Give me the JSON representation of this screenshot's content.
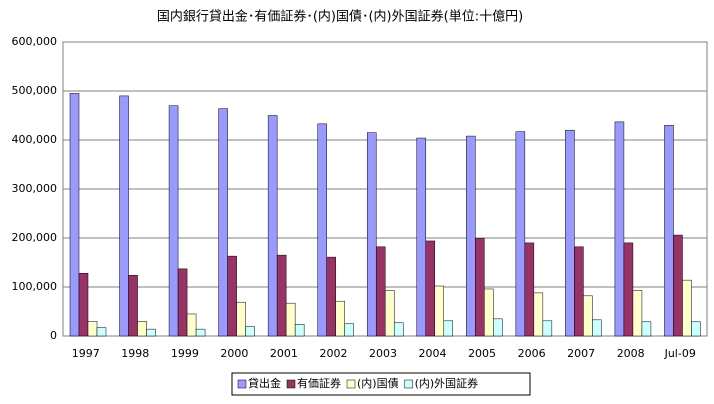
{
  "chart_data": {
    "type": "bar",
    "title": "国内銀行貸出金･有価証券･(内)国債･(内)外国証券(単位:十億円)",
    "categories": [
      "1997",
      "1998",
      "1999",
      "2000",
      "2001",
      "2002",
      "2003",
      "2004",
      "2005",
      "2006",
      "2007",
      "2008",
      "Jul-09"
    ],
    "series": [
      {
        "name": "貸出金",
        "color": "#9999ff",
        "values": [
          495000,
          490000,
          470000,
          464000,
          450000,
          433000,
          415000,
          404000,
          408000,
          417000,
          420000,
          437000,
          430000
        ]
      },
      {
        "name": "有価証券",
        "color": "#993366",
        "values": [
          128000,
          124000,
          137000,
          163000,
          165000,
          161000,
          182000,
          194000,
          199000,
          190000,
          182000,
          190000,
          206000
        ]
      },
      {
        "name": "(内)国債",
        "color": "#ffffcc",
        "values": [
          30000,
          30000,
          45000,
          69000,
          67000,
          71000,
          93000,
          102000,
          96000,
          88000,
          82000,
          93000,
          114000
        ]
      },
      {
        "name": "(内)外国証券",
        "color": "#ccffff",
        "values": [
          17000,
          14000,
          14000,
          19000,
          24000,
          25000,
          27000,
          31000,
          35000,
          31000,
          33000,
          29000,
          29000
        ]
      }
    ],
    "ylim": [
      0,
      600000
    ],
    "yticks": [
      0,
      {
        "value": 100000,
        "label": "100,000"
      },
      {
        "value": 200000,
        "label": "200,000"
      },
      {
        "value": 300000,
        "label": "300,000"
      },
      {
        "value": 400000,
        "label": "400,000"
      },
      {
        "value": 500000,
        "label": "500,000"
      },
      {
        "value": 600000,
        "label": "600,000"
      }
    ],
    "grid": true,
    "legend": "bottom"
  }
}
